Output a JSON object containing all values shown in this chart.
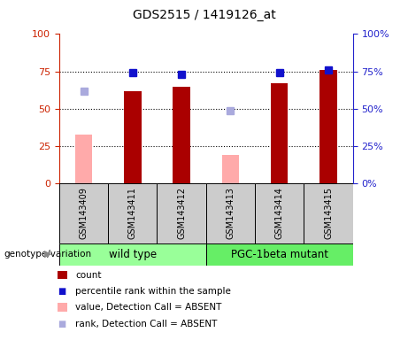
{
  "title": "GDS2515 / 1419126_at",
  "samples": [
    "GSM143409",
    "GSM143411",
    "GSM143412",
    "GSM143413",
    "GSM143414",
    "GSM143415"
  ],
  "count_values": [
    null,
    62,
    65,
    null,
    67,
    76
  ],
  "count_absent": [
    33,
    null,
    null,
    19,
    null,
    null
  ],
  "rank_values": [
    null,
    74,
    73,
    null,
    74,
    76
  ],
  "rank_absent": [
    62,
    null,
    null,
    49,
    null,
    null
  ],
  "ylim": [
    0,
    100
  ],
  "yticks": [
    0,
    25,
    50,
    75,
    100
  ],
  "count_color": "#aa0000",
  "count_absent_color": "#ffaaaa",
  "rank_color": "#1111cc",
  "rank_absent_color": "#aaaadd",
  "wild_type_label": "wild type",
  "mutant_label": "PGC-1beta mutant",
  "wild_type_color": "#99ff99",
  "mutant_color": "#66ee66",
  "group_label": "genotype/variation",
  "bar_width": 0.35,
  "marker_size": 6,
  "sample_bg_color": "#cccccc",
  "left_tick_color": "#cc2200",
  "right_tick_color": "#2222cc",
  "legend_items": [
    {
      "color": "#aa0000",
      "type": "rect",
      "label": "count"
    },
    {
      "color": "#1111cc",
      "type": "square",
      "label": "percentile rank within the sample"
    },
    {
      "color": "#ffaaaa",
      "type": "rect",
      "label": "value, Detection Call = ABSENT"
    },
    {
      "color": "#aaaadd",
      "type": "square",
      "label": "rank, Detection Call = ABSENT"
    }
  ]
}
